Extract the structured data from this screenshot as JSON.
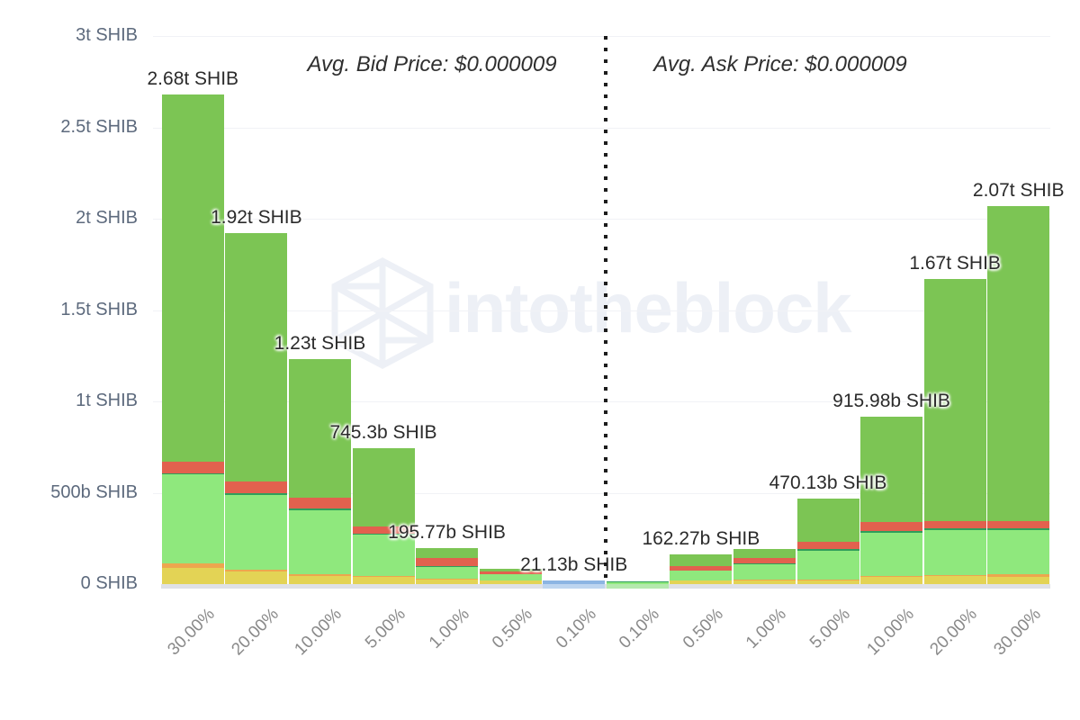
{
  "chart_data": {
    "type": "bar",
    "stacked": true,
    "title": "",
    "unit": "SHIB",
    "xlabel": "",
    "ylabel": "",
    "ylim_billions": [
      0,
      3000
    ],
    "grid": "horizontal",
    "legend": "none",
    "y_ticks": [
      {
        "label": "3t SHIB",
        "value_b": 3000
      },
      {
        "label": "2.5t SHIB",
        "value_b": 2500
      },
      {
        "label": "2t SHIB",
        "value_b": 2000
      },
      {
        "label": "1.5t SHIB",
        "value_b": 1500
      },
      {
        "label": "1t SHIB",
        "value_b": 1000
      },
      {
        "label": "500b SHIB",
        "value_b": 500
      },
      {
        "label": "0 SHIB",
        "value_b": 0
      }
    ],
    "categories": [
      "30.00%",
      "20.00%",
      "10.00%",
      "5.00%",
      "1.00%",
      "0.50%",
      "0.10%",
      "0.10%",
      "0.50%",
      "1.00%",
      "5.00%",
      "10.00%",
      "20.00%",
      "30.00%"
    ],
    "sides": [
      "bid",
      "bid",
      "bid",
      "bid",
      "bid",
      "bid",
      "bid",
      "ask",
      "ask",
      "ask",
      "ask",
      "ask",
      "ask",
      "ask"
    ],
    "bar_totals_b": [
      2680,
      1920,
      1230,
      745.3,
      195.77,
      86,
      21.13,
      16,
      162.27,
      190,
      470.13,
      915.98,
      1670,
      2070
    ],
    "bar_labels": [
      "2.68t SHIB",
      "1.92t SHIB",
      "1.23t SHIB",
      "745.3b SHIB",
      "195.77b SHIB",
      "",
      "21.13b SHIB",
      "",
      "162.27b SHIB",
      "",
      "470.13b SHIB",
      "915.98b SHIB",
      "1.67t SHIB",
      "2.07t SHIB"
    ],
    "series": [
      {
        "name": "yellow-segment",
        "color": "#e3d355",
        "values": [
          89,
          69,
          44,
          39,
          25,
          20,
          0,
          0,
          18,
          20,
          20,
          40,
          42,
          40
        ]
      },
      {
        "name": "orange-segment",
        "color": "#eda64e",
        "values": [
          25,
          10,
          10,
          5,
          4,
          2,
          0,
          0,
          3,
          3,
          4,
          6,
          8,
          15
        ]
      },
      {
        "name": "light-green-segment",
        "color": "#8fe87d",
        "values": [
          487,
          408,
          349,
          226,
          64,
          30,
          0,
          12,
          52,
          85,
          160,
          236,
          246,
          241
        ]
      },
      {
        "name": "teal-segment",
        "color": "#2f9e5b",
        "values": [
          6,
          10,
          10,
          5,
          5,
          3,
          0,
          4,
          3,
          4,
          8,
          8,
          8,
          8
        ]
      },
      {
        "name": "red-segment",
        "color": "#e2614e",
        "values": [
          64,
          64,
          59,
          42,
          44,
          14,
          0,
          0,
          21,
          29,
          40,
          49,
          40,
          42
        ]
      },
      {
        "name": "green-segment",
        "color": "#7cc554",
        "values": [
          2009,
          1359,
          758,
          428.3,
          53.77,
          17,
          0,
          0,
          65.27,
          49,
          238.13,
          576.98,
          1326,
          1724
        ]
      },
      {
        "name": "blue-segment",
        "color": "#8cb5e3",
        "values": [
          0,
          0,
          0,
          0,
          0,
          0,
          21.13,
          0,
          0,
          0,
          0,
          0,
          0,
          0
        ]
      }
    ],
    "baseline": {
      "color": "#dfe1e6",
      "tints": [
        {
          "index": 6,
          "color": "#bdd5f0"
        },
        {
          "index": 7,
          "color": "#b5e9ae"
        }
      ]
    },
    "annotations": {
      "bid": "Avg. Bid Price: $0.000009",
      "ask": "Avg. Ask Price: $0.000009"
    },
    "watermark": "intotheblock"
  }
}
